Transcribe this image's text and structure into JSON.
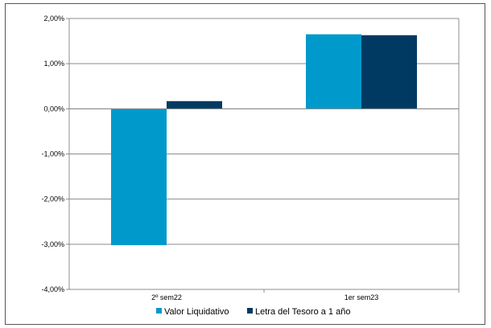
{
  "chart_data": {
    "type": "bar",
    "title": "",
    "xlabel": "",
    "ylabel": "",
    "categories": [
      "2º sem22",
      "1er sem23"
    ],
    "series": [
      {
        "name": "Valor Liquidativo",
        "values": [
          -3.02,
          1.65
        ],
        "color": "#0099CC"
      },
      {
        "name": "Letra del Tesoro a 1 año",
        "values": [
          0.17,
          1.63
        ],
        "color": "#003A63"
      }
    ],
    "ylim": [
      -4,
      2
    ],
    "yticks": [
      2,
      1,
      0,
      -1,
      -2,
      -3,
      -4
    ],
    "ytick_labels": [
      "2,00%",
      "1,00%",
      "0,00%",
      "-1,00%",
      "-2,00%",
      "-3,00%",
      "-4,00%"
    ],
    "grid": true,
    "legend_position": "bottom"
  }
}
